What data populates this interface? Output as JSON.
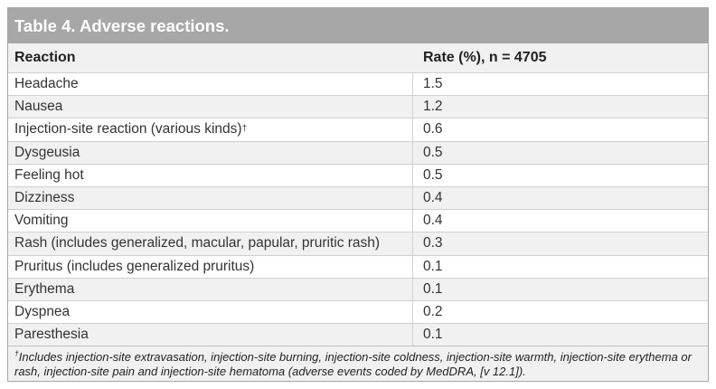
{
  "table": {
    "title": "Table 4. Adverse reactions.",
    "headers": {
      "reaction": "Reaction",
      "rate": "Rate (%), n = 4705"
    },
    "rows": [
      {
        "reaction": "Headache",
        "marker": "",
        "rate": "1.5"
      },
      {
        "reaction": "Nausea",
        "marker": "",
        "rate": "1.2"
      },
      {
        "reaction": "Injection-site reaction (various kinds)",
        "marker": "†",
        "rate": "0.6"
      },
      {
        "reaction": "Dysgeusia",
        "marker": "",
        "rate": "0.5"
      },
      {
        "reaction": "Feeling hot",
        "marker": "",
        "rate": "0.5"
      },
      {
        "reaction": "Dizziness",
        "marker": "",
        "rate": "0.4"
      },
      {
        "reaction": "Vomiting",
        "marker": "",
        "rate": "0.4"
      },
      {
        "reaction": "Rash (includes generalized, macular, papular, pruritic rash)",
        "marker": "",
        "rate": "0.3"
      },
      {
        "reaction": "Pruritus (includes generalized pruritus)",
        "marker": "",
        "rate": "0.1"
      },
      {
        "reaction": "Erythema",
        "marker": "",
        "rate": "0.1"
      },
      {
        "reaction": "Dyspnea",
        "marker": "",
        "rate": "0.2"
      },
      {
        "reaction": "Paresthesia",
        "marker": "",
        "rate": "0.1"
      }
    ],
    "footnote": {
      "marker": "†",
      "text": "Includes injection-site extravasation, injection-site burning, injection-site coldness, injection-site warmth, injection-site erythema or rash, injection-site pain and injection-site hematoma (adverse events coded by MedDRA, [v 12.1])."
    }
  }
}
